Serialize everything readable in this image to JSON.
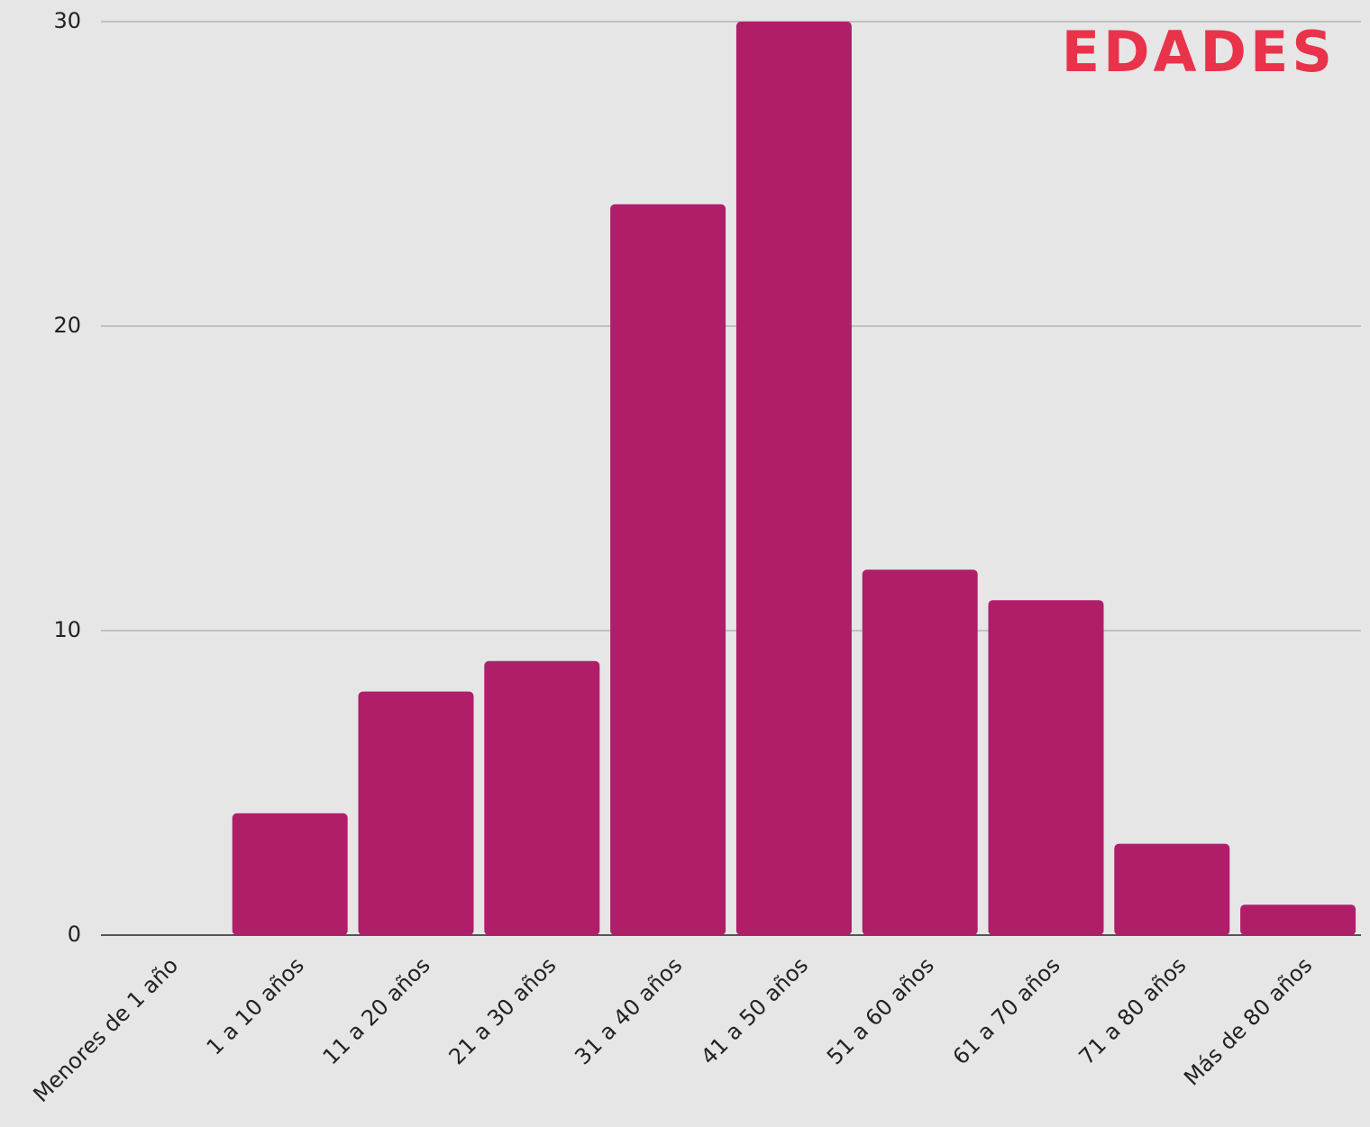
{
  "chart_data": {
    "type": "bar",
    "title": "EDADES",
    "categories": [
      "Menores de 1 año",
      "1 a 10 años",
      "11 a 20 años",
      "21 a 30 años",
      "31 a 40 años",
      "41 a 50 años",
      "51 a 60 años",
      "61 a 70 años",
      "71 a 80 años",
      "Más de 80 años"
    ],
    "values": [
      0,
      4,
      8,
      9,
      24,
      30,
      12,
      11,
      3,
      1
    ],
    "color": "#b01e6a",
    "ylim": [
      0,
      30
    ],
    "yticks": [
      0,
      10,
      20,
      30
    ],
    "grid": true
  }
}
